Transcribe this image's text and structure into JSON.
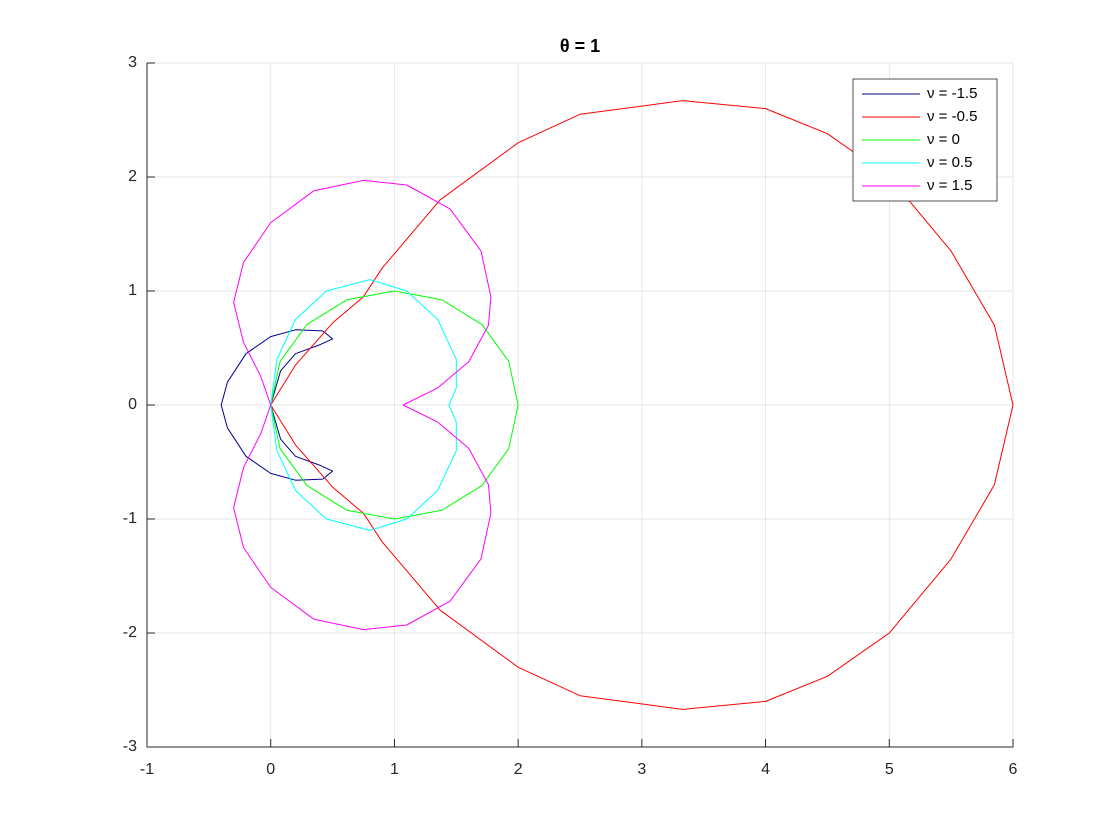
{
  "chart_data": {
    "type": "line",
    "title": "θ = 1",
    "xlim": [
      -1,
      6
    ],
    "ylim": [
      -3,
      3
    ],
    "xticks": [
      -1,
      0,
      1,
      2,
      3,
      4,
      5,
      6
    ],
    "yticks": [
      -3,
      -2,
      -1,
      0,
      1,
      2,
      3
    ],
    "grid": true,
    "legend": "upper right",
    "series": [
      {
        "name": "ν = -1.5",
        "color": "#00008b",
        "x": [
          0,
          0.08,
          0.2,
          0.4,
          0.5,
          0.42,
          0.2,
          0,
          -0.2,
          -0.35,
          -0.4,
          -0.35,
          -0.2,
          0,
          0.2,
          0.42,
          0.5,
          0.4,
          0.2,
          0.08,
          0
        ],
        "y": [
          0,
          0.3,
          0.45,
          0.53,
          0.58,
          0.65,
          0.66,
          0.6,
          0.45,
          0.2,
          0,
          -0.2,
          -0.45,
          -0.6,
          -0.66,
          -0.65,
          -0.58,
          -0.53,
          -0.45,
          -0.3,
          0
        ]
      },
      {
        "name": "ν = -0.5",
        "color": "#ff0000",
        "x": [
          0,
          0.2,
          0.5,
          0.75,
          0.9,
          1.37,
          2,
          2.5,
          3.33,
          4,
          4.5,
          5,
          5.5,
          5.85,
          6,
          5.85,
          5.5,
          5,
          4.5,
          4,
          3.33,
          2.5,
          2,
          1.37,
          0.9,
          0.75,
          0.5,
          0.2,
          0
        ],
        "y": [
          0,
          0.35,
          0.72,
          0.95,
          1.2,
          1.8,
          2.3,
          2.55,
          2.67,
          2.6,
          2.38,
          2.0,
          1.35,
          0.7,
          0,
          -0.7,
          -1.35,
          -2.0,
          -2.38,
          -2.6,
          -2.67,
          -2.55,
          -2.3,
          -1.8,
          -1.2,
          -0.95,
          -0.72,
          -0.35,
          0
        ]
      },
      {
        "name": "ν = 0",
        "color": "#00ff00",
        "x": [
          2,
          1.924,
          1.707,
          1.383,
          1,
          0.617,
          0.293,
          0.076,
          0,
          0.076,
          0.293,
          0.617,
          1,
          1.383,
          1.707,
          1.924,
          2
        ],
        "y": [
          0,
          0.383,
          0.707,
          0.924,
          1,
          0.924,
          0.707,
          0.383,
          0,
          -0.383,
          -0.707,
          -0.924,
          -1,
          -0.924,
          -0.707,
          -0.383,
          0
        ]
      },
      {
        "name": "ν = 0.5",
        "color": "#00ffff",
        "x": [
          0,
          0.05,
          0.2,
          0.45,
          0.8,
          1.1,
          1.35,
          1.5,
          1.5,
          1.44,
          1.5,
          1.5,
          1.35,
          1.1,
          0.8,
          0.45,
          0.2,
          0.05,
          0
        ],
        "y": [
          0,
          0.4,
          0.75,
          1.0,
          1.1,
          1.0,
          0.75,
          0.4,
          0.15,
          0,
          -0.15,
          -0.4,
          -0.75,
          -1.0,
          -1.1,
          -1.0,
          -0.75,
          -0.4,
          0
        ]
      },
      {
        "name": "ν = 1.5",
        "color": "#ff00ff",
        "x": [
          1.07,
          1.35,
          1.6,
          1.76,
          1.78,
          1.7,
          1.45,
          1.1,
          0.75,
          0.35,
          0,
          -0.22,
          -0.3,
          -0.22,
          -0.08,
          0,
          -0.08,
          -0.22,
          -0.3,
          -0.22,
          0,
          0.35,
          0.75,
          1.1,
          1.45,
          1.7,
          1.78,
          1.76,
          1.6,
          1.35,
          1.07
        ],
        "y": [
          0,
          0.15,
          0.38,
          0.7,
          0.95,
          1.35,
          1.72,
          1.93,
          1.97,
          1.88,
          1.6,
          1.25,
          0.9,
          0.55,
          0.25,
          0,
          -0.25,
          -0.55,
          -0.9,
          -1.25,
          -1.6,
          -1.88,
          -1.97,
          -1.93,
          -1.72,
          -1.35,
          -0.95,
          -0.7,
          -0.38,
          -0.15,
          0
        ]
      }
    ]
  }
}
